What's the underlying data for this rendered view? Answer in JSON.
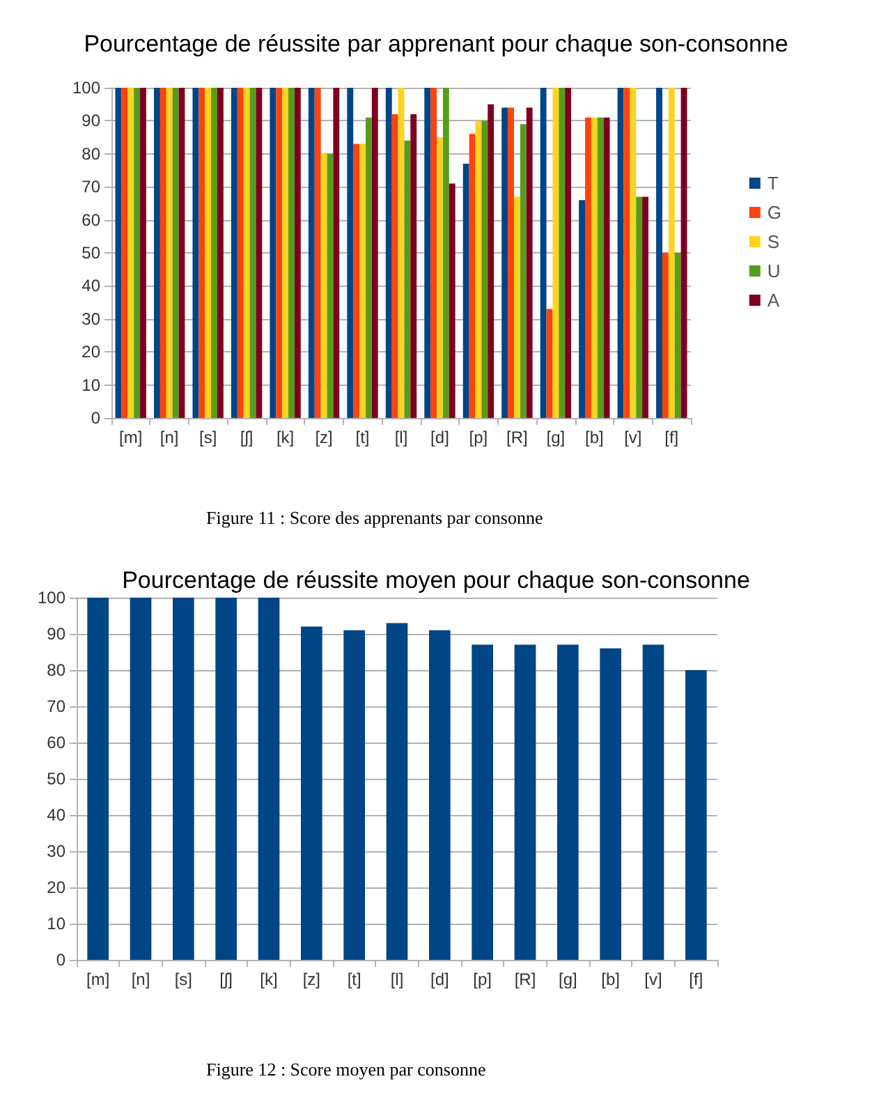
{
  "chart_data": [
    {
      "type": "bar",
      "title": "Pourcentage de réussite par apprenant pour chaque son-consonne",
      "categories": [
        "[m]",
        "[n]",
        "[s]",
        "[ʃ]",
        "[k]",
        "[z]",
        "[t]",
        "[l]",
        "[d]",
        "[p]",
        "[R]",
        "[g]",
        "[b]",
        "[v]",
        "[f]"
      ],
      "series": [
        {
          "name": "T",
          "color": "#004586",
          "values": [
            100,
            100,
            100,
            100,
            100,
            100,
            100,
            100,
            100,
            77,
            94,
            100,
            66,
            100,
            100
          ]
        },
        {
          "name": "G",
          "color": "#ff420e",
          "values": [
            100,
            100,
            100,
            100,
            100,
            100,
            83,
            92,
            100,
            86,
            94,
            33,
            91,
            100,
            50
          ]
        },
        {
          "name": "S",
          "color": "#ffd320",
          "values": [
            100,
            100,
            100,
            100,
            100,
            80,
            83,
            100,
            85,
            90,
            67,
            100,
            91,
            100,
            100
          ]
        },
        {
          "name": "U",
          "color": "#579d1c",
          "values": [
            100,
            100,
            100,
            100,
            100,
            80,
            91,
            84,
            100,
            90,
            89,
            100,
            91,
            67,
            50
          ]
        },
        {
          "name": "A",
          "color": "#7e0021",
          "values": [
            100,
            100,
            100,
            100,
            100,
            100,
            100,
            92,
            71,
            95,
            94,
            100,
            91,
            67,
            100
          ]
        }
      ],
      "ylim": [
        0,
        100
      ],
      "yticks": [
        0,
        10,
        20,
        30,
        40,
        50,
        60,
        70,
        80,
        90,
        100
      ],
      "grid": "y",
      "legend": "right",
      "annotations": [
        "Figure 11 : Score des apprenants par consonne"
      ]
    },
    {
      "type": "bar",
      "title": "Pourcentage de réussite moyen pour chaque son-consonne",
      "categories": [
        "[m]",
        "[n]",
        "[s]",
        "[ʃ]",
        "[k]",
        "[z]",
        "[t]",
        "[l]",
        "[d]",
        "[p]",
        "[R]",
        "[g]",
        "[b]",
        "[v]",
        "[f]"
      ],
      "values": [
        100,
        100,
        100,
        100,
        100,
        92,
        91,
        93,
        91,
        87,
        87,
        87,
        86,
        87,
        80
      ],
      "color": "#004586",
      "ylim": [
        0,
        100
      ],
      "yticks": [
        0,
        10,
        20,
        30,
        40,
        50,
        60,
        70,
        80,
        90,
        100
      ],
      "grid": "y",
      "annotations": [
        "Figure 12 : Score moyen par consonne"
      ]
    }
  ]
}
